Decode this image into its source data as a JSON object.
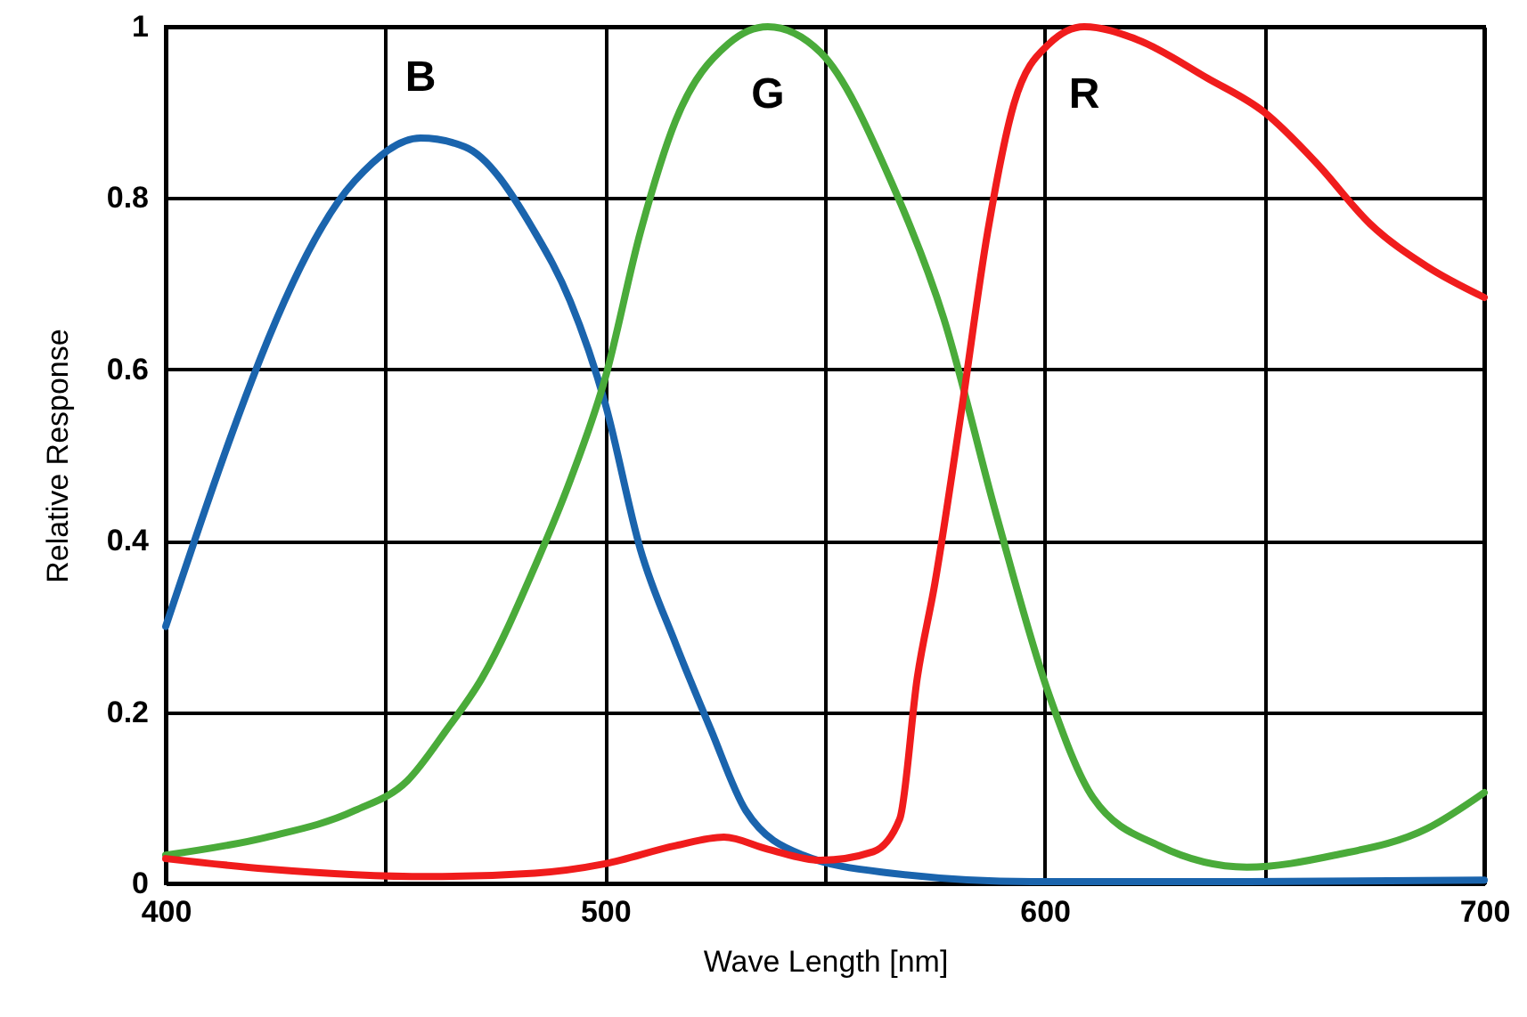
{
  "chart_data": {
    "type": "line",
    "xlabel": "Wave Length [nm]",
    "ylabel": "Relative Response",
    "xlim": [
      400,
      700
    ],
    "xticks": [
      400,
      {
        "value": 450,
        "label": null
      },
      500,
      {
        "value": 550,
        "label": null
      },
      600,
      {
        "value": 650,
        "label": null
      },
      700
    ],
    "ylim": [
      0,
      1
    ],
    "yticks": [
      0,
      0.2,
      0.4,
      0.6,
      0.8,
      1
    ],
    "grid": true,
    "line_style": "solid",
    "marker": "none",
    "series": [
      {
        "name": "B",
        "color": "#1a64ad",
        "x": [
          400,
          443,
          458,
          468,
          484,
          492,
          500,
          508,
          516,
          524,
          532,
          545,
          565,
          597,
          646,
          700
        ],
        "values": [
          0.3,
          0.82,
          0.87,
          0.86,
          0.76,
          0.68,
          0.56,
          0.39,
          0.28,
          0.18,
          0.085,
          0.033,
          0.012,
          0.002,
          0.002,
          0.004
        ]
      },
      {
        "name": "G",
        "color": "#4aab3a",
        "x": [
          400,
          423,
          443,
          455,
          464,
          472,
          484,
          492,
          500,
          508,
          516,
          528,
          537,
          549,
          565,
          577,
          589,
          601,
          611,
          626,
          646,
          666,
          687,
          700
        ],
        "values": [
          0.033,
          0.054,
          0.085,
          0.12,
          0.18,
          0.24,
          0.37,
          0.47,
          0.59,
          0.76,
          0.89,
          0.98,
          1.0,
          0.97,
          0.82,
          0.66,
          0.43,
          0.22,
          0.1,
          0.044,
          0.019,
          0.033,
          0.064,
          0.106
        ]
      },
      {
        "name": "R",
        "color": "#f01c1c",
        "x": [
          400,
          423,
          460,
          484,
          500,
          516,
          527,
          537,
          549,
          561,
          567,
          571,
          575,
          581,
          587,
          593,
          601,
          609,
          621,
          637,
          650,
          662,
          674,
          687,
          700
        ],
        "values": [
          0.029,
          0.017,
          0.008,
          0.012,
          0.023,
          0.044,
          0.054,
          0.04,
          0.027,
          0.037,
          0.075,
          0.24,
          0.35,
          0.55,
          0.76,
          0.91,
          0.98,
          1.0,
          0.985,
          0.94,
          0.9,
          0.84,
          0.77,
          0.72,
          0.684
        ]
      }
    ]
  }
}
